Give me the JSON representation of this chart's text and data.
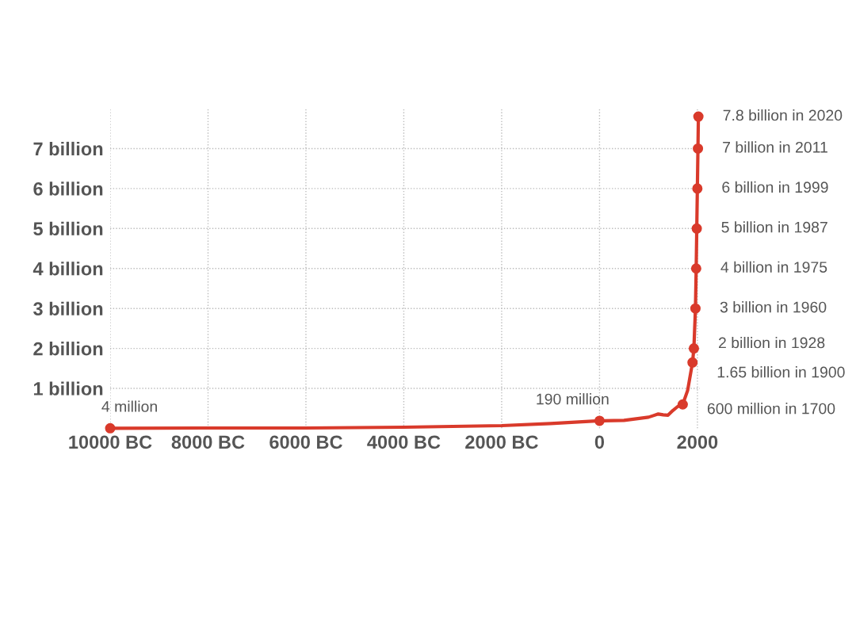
{
  "chart_data": {
    "type": "line",
    "xlim": [
      -10000,
      2050
    ],
    "ylim": [
      0,
      8
    ],
    "xticks": [
      {
        "value": -10000,
        "label": "10000 BC"
      },
      {
        "value": -8000,
        "label": "8000 BC"
      },
      {
        "value": -6000,
        "label": "6000 BC"
      },
      {
        "value": -4000,
        "label": "4000 BC"
      },
      {
        "value": -2000,
        "label": "2000 BC"
      },
      0,
      2000
    ],
    "yticks": [
      {
        "value": 1,
        "label": "1 billion"
      },
      {
        "value": 2,
        "label": "2 billion"
      },
      {
        "value": 3,
        "label": "3 billion"
      },
      {
        "value": 4,
        "label": "4 billion"
      },
      {
        "value": 5,
        "label": "5 billion"
      },
      {
        "value": 6,
        "label": "6 billion"
      },
      {
        "value": 7,
        "label": "7 billion"
      }
    ],
    "grid": true,
    "series": [
      {
        "color": "#d93a2b",
        "marker": "none",
        "x": [
          -10000,
          -8000,
          -6000,
          -4000,
          -2000,
          -1000,
          0,
          500,
          1000,
          1100,
          1200,
          1300,
          1400,
          1500,
          1600,
          1700,
          1800,
          1900,
          1928,
          1960,
          1975,
          1987,
          1999,
          2011,
          2020
        ],
        "values": [
          0.004,
          0.01,
          0.01,
          0.03,
          0.07,
          0.12,
          0.19,
          0.2,
          0.28,
          0.32,
          0.36,
          0.34,
          0.33,
          0.45,
          0.55,
          0.6,
          0.95,
          1.65,
          2,
          3,
          4,
          5,
          6,
          7,
          7.8
        ]
      },
      {
        "type": "scatter",
        "color": "#d93a2b",
        "marker": "circle",
        "x": [
          -10000,
          0,
          1700,
          1900,
          1928,
          1960,
          1975,
          1987,
          1999,
          2011,
          2020
        ],
        "values": [
          0.004,
          0.19,
          0.6,
          1.65,
          2,
          3,
          4,
          5,
          6,
          7,
          7.8
        ]
      }
    ],
    "annotations": [
      {
        "text": "4 million",
        "x": -10000,
        "y": 0.004
      },
      {
        "text": "190 million",
        "x": 0,
        "y": 0.19
      },
      {
        "text": "600 million in 1700",
        "x": 1700,
        "y": 0.6
      },
      {
        "text": "1.65 billion in 1900",
        "x": 1900,
        "y": 1.65
      },
      {
        "text": "2 billion in 1928",
        "x": 1928,
        "y": 2
      },
      {
        "text": "3 billion in 1960",
        "x": 1960,
        "y": 3
      },
      {
        "text": "4 billion in 1975",
        "x": 1975,
        "y": 4
      },
      {
        "text": "5 billion in 1987",
        "x": 1987,
        "y": 5
      },
      {
        "text": "6 billion in 1999",
        "x": 1999,
        "y": 6
      },
      {
        "text": "7 billion in 2011",
        "x": 2011,
        "y": 7
      },
      {
        "text": "7.8 billion in 2020",
        "x": 2020,
        "y": 7.8
      }
    ]
  }
}
